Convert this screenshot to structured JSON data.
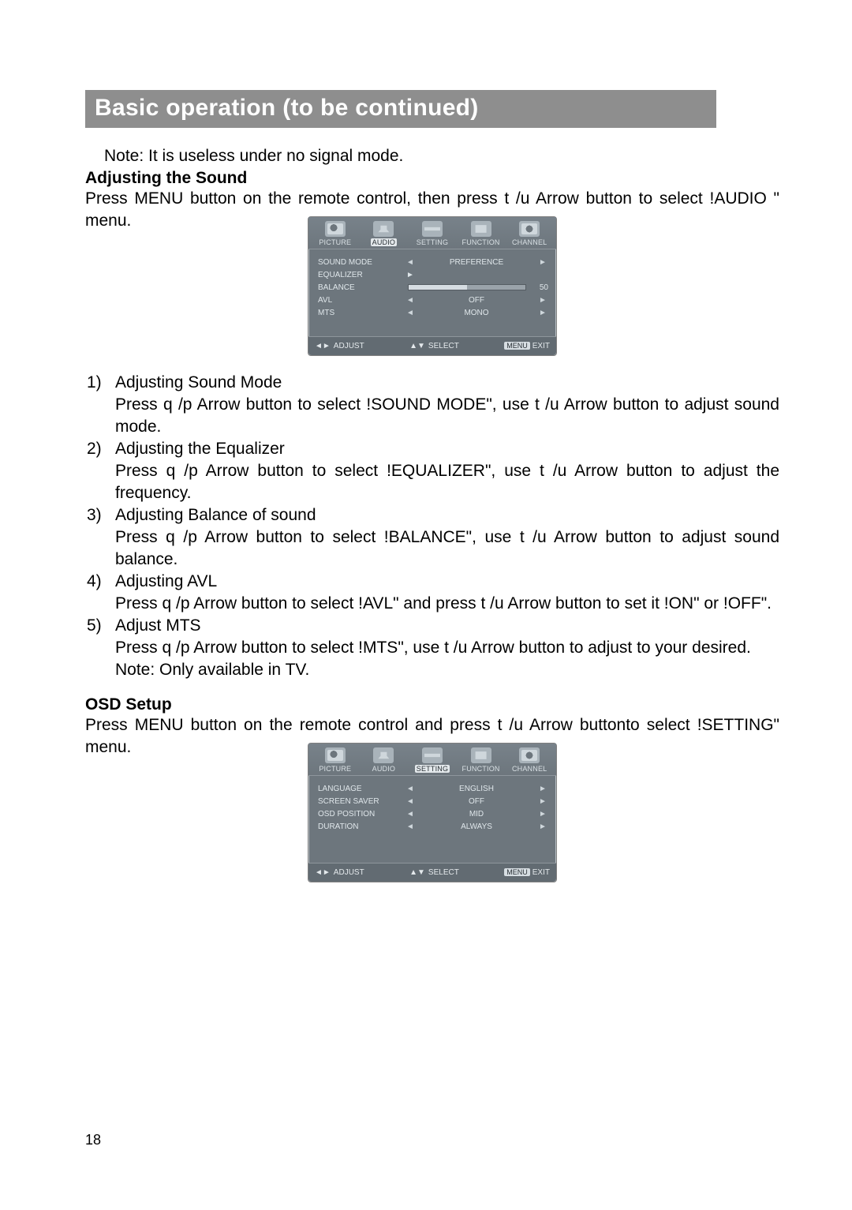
{
  "title": "Basic operation (to be continued)",
  "note_top": "Note: It is useless under no signal mode.",
  "section1_heading": "Adjusting the Sound",
  "section1_para": "Press MENU button on the remote control, then press  t /u  Arrow button to select !AUDIO \" menu.",
  "audio_menu": {
    "tabs": [
      "PICTURE",
      "AUDIO",
      "SETTING",
      "FUNCTION",
      "CHANNEL"
    ],
    "active_tab": "AUDIO",
    "rows": [
      {
        "key": "SOUND MODE",
        "type": "lr",
        "value": "PREFERENCE"
      },
      {
        "key": "EQUALIZER",
        "type": "enter"
      },
      {
        "key": "BALANCE",
        "type": "slider",
        "percent": 50,
        "num": "50"
      },
      {
        "key": "AVL",
        "type": "lr",
        "value": "OFF"
      },
      {
        "key": "MTS",
        "type": "lr",
        "value": "MONO"
      }
    ],
    "foot": {
      "adjust": "ADJUST",
      "select": "SELECT",
      "menu": "MENU",
      "exit": "EXIT"
    },
    "colors": {
      "bg": "#6d767d",
      "text": "#dfe6ea",
      "accent": "#d6dde2"
    }
  },
  "list": [
    {
      "n": "1)",
      "title": "Adjusting Sound Mode",
      "body": "Press q /p  Arrow button to select !SOUND MODE\", use t /u  Arrow button to adjust sound mode."
    },
    {
      "n": "2)",
      "title": "Adjusting the Equalizer",
      "body": "Press q /p  Arrow button to select !EQUALIZER\", use t /u  Arrow button to adjust the frequency."
    },
    {
      "n": "3)",
      "title": "Adjusting Balance of sound",
      "body": "Press q /p  Arrow button to select !BALANCE\", use t /u  Arrow button to adjust sound balance."
    },
    {
      "n": "4)",
      "title": "Adjusting AVL",
      "body": "Press q /p  Arrow button to select  !AVL\" and press t /u  Arrow button to set it !ON\" or !OFF\"."
    },
    {
      "n": "5)",
      "title": "Adjust MTS",
      "body": "Press q /p Arrow button to select !MTS\", use t /u  Arrow button to adjust to your desired.",
      "note": "Note: Only available in TV."
    }
  ],
  "section2_heading": "OSD Setup",
  "section2_para": "Press MENU button on the remote control and press t /u  Arrow buttonto select !SETTING\" menu.",
  "setting_menu": {
    "tabs": [
      "PICTURE",
      "AUDIO",
      "SETTING",
      "FUNCTION",
      "CHANNEL"
    ],
    "active_tab": "SETTING",
    "rows": [
      {
        "key": "LANGUAGE",
        "type": "lr",
        "value": "ENGLISH"
      },
      {
        "key": "SCREEN SAVER",
        "type": "lr",
        "value": "OFF"
      },
      {
        "key": "OSD POSITION",
        "type": "lr",
        "value": "MID"
      },
      {
        "key": "DURATION",
        "type": "lr",
        "value": "ALWAYS"
      }
    ],
    "foot": {
      "adjust": "ADJUST",
      "select": "SELECT",
      "menu": "MENU",
      "exit": "EXIT"
    }
  },
  "page_number": "18"
}
